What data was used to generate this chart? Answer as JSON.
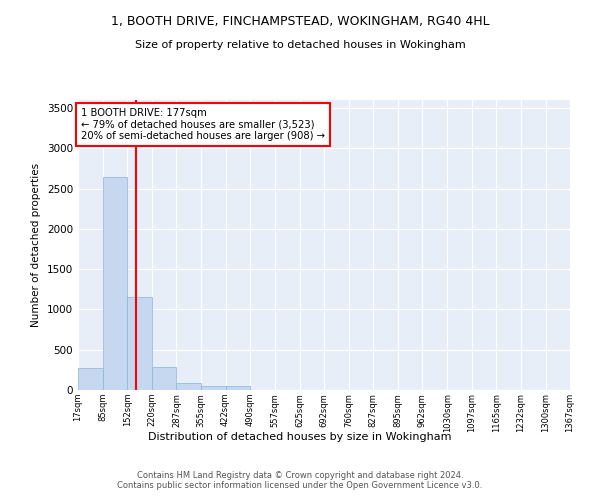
{
  "title": "1, BOOTH DRIVE, FINCHAMPSTEAD, WOKINGHAM, RG40 4HL",
  "subtitle": "Size of property relative to detached houses in Wokingham",
  "xlabel": "Distribution of detached houses by size in Wokingham",
  "ylabel": "Number of detached properties",
  "bar_color": "#c5d8f0",
  "bar_edge_color": "#8ab4d8",
  "background_color": "#e8eef8",
  "annotation_text": "1 BOOTH DRIVE: 177sqm\n← 79% of detached houses are smaller (3,523)\n20% of semi-detached houses are larger (908) →",
  "vline_x": 177,
  "vline_color": "red",
  "footer": "Contains HM Land Registry data © Crown copyright and database right 2024.\nContains public sector information licensed under the Open Government Licence v3.0.",
  "bin_edges": [
    17,
    85,
    152,
    220,
    287,
    355,
    422,
    490,
    557,
    625,
    692,
    760,
    827,
    895,
    962,
    1030,
    1097,
    1165,
    1232,
    1300,
    1367
  ],
  "bar_heights": [
    275,
    2640,
    1150,
    280,
    90,
    50,
    50,
    0,
    0,
    0,
    0,
    0,
    0,
    0,
    0,
    0,
    0,
    0,
    0,
    0
  ],
  "ylim": [
    0,
    3600
  ],
  "yticks": [
    0,
    500,
    1000,
    1500,
    2000,
    2500,
    3000,
    3500
  ],
  "figsize": [
    6.0,
    5.0
  ],
  "dpi": 100
}
